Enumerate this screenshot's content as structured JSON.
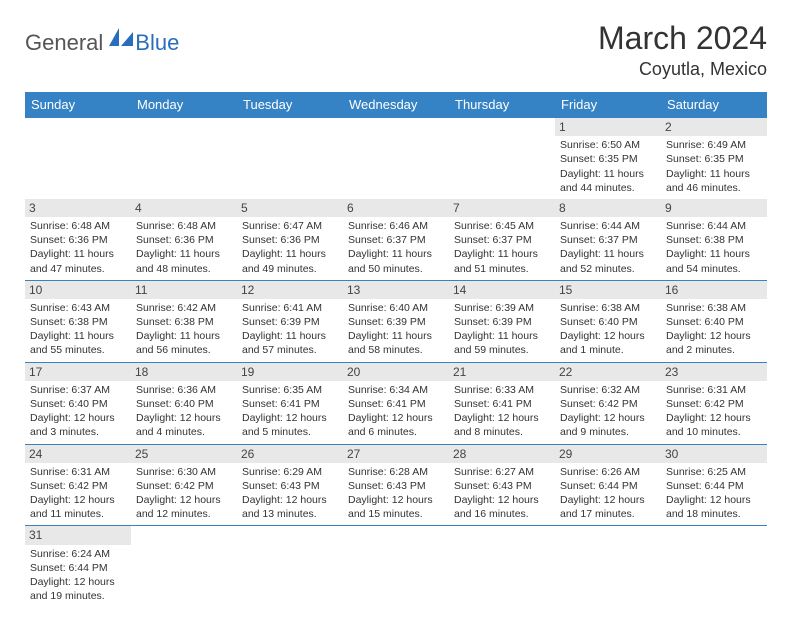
{
  "brand": {
    "text1": "General",
    "text2": "Blue"
  },
  "title": "March 2024",
  "location": "Coyutla, Mexico",
  "colors": {
    "header_bg": "#3582c4",
    "header_fg": "#ffffff",
    "daynum_bg": "#e8e8e8",
    "border": "#3582c4",
    "brand_blue": "#2a6ebb"
  },
  "day_names": [
    "Sunday",
    "Monday",
    "Tuesday",
    "Wednesday",
    "Thursday",
    "Friday",
    "Saturday"
  ],
  "weeks": [
    [
      {
        "n": "",
        "sr": "",
        "ss": "",
        "d1": "",
        "d2": ""
      },
      {
        "n": "",
        "sr": "",
        "ss": "",
        "d1": "",
        "d2": ""
      },
      {
        "n": "",
        "sr": "",
        "ss": "",
        "d1": "",
        "d2": ""
      },
      {
        "n": "",
        "sr": "",
        "ss": "",
        "d1": "",
        "d2": ""
      },
      {
        "n": "",
        "sr": "",
        "ss": "",
        "d1": "",
        "d2": ""
      },
      {
        "n": "1",
        "sr": "Sunrise: 6:50 AM",
        "ss": "Sunset: 6:35 PM",
        "d1": "Daylight: 11 hours",
        "d2": "and 44 minutes."
      },
      {
        "n": "2",
        "sr": "Sunrise: 6:49 AM",
        "ss": "Sunset: 6:35 PM",
        "d1": "Daylight: 11 hours",
        "d2": "and 46 minutes."
      }
    ],
    [
      {
        "n": "3",
        "sr": "Sunrise: 6:48 AM",
        "ss": "Sunset: 6:36 PM",
        "d1": "Daylight: 11 hours",
        "d2": "and 47 minutes."
      },
      {
        "n": "4",
        "sr": "Sunrise: 6:48 AM",
        "ss": "Sunset: 6:36 PM",
        "d1": "Daylight: 11 hours",
        "d2": "and 48 minutes."
      },
      {
        "n": "5",
        "sr": "Sunrise: 6:47 AM",
        "ss": "Sunset: 6:36 PM",
        "d1": "Daylight: 11 hours",
        "d2": "and 49 minutes."
      },
      {
        "n": "6",
        "sr": "Sunrise: 6:46 AM",
        "ss": "Sunset: 6:37 PM",
        "d1": "Daylight: 11 hours",
        "d2": "and 50 minutes."
      },
      {
        "n": "7",
        "sr": "Sunrise: 6:45 AM",
        "ss": "Sunset: 6:37 PM",
        "d1": "Daylight: 11 hours",
        "d2": "and 51 minutes."
      },
      {
        "n": "8",
        "sr": "Sunrise: 6:44 AM",
        "ss": "Sunset: 6:37 PM",
        "d1": "Daylight: 11 hours",
        "d2": "and 52 minutes."
      },
      {
        "n": "9",
        "sr": "Sunrise: 6:44 AM",
        "ss": "Sunset: 6:38 PM",
        "d1": "Daylight: 11 hours",
        "d2": "and 54 minutes."
      }
    ],
    [
      {
        "n": "10",
        "sr": "Sunrise: 6:43 AM",
        "ss": "Sunset: 6:38 PM",
        "d1": "Daylight: 11 hours",
        "d2": "and 55 minutes."
      },
      {
        "n": "11",
        "sr": "Sunrise: 6:42 AM",
        "ss": "Sunset: 6:38 PM",
        "d1": "Daylight: 11 hours",
        "d2": "and 56 minutes."
      },
      {
        "n": "12",
        "sr": "Sunrise: 6:41 AM",
        "ss": "Sunset: 6:39 PM",
        "d1": "Daylight: 11 hours",
        "d2": "and 57 minutes."
      },
      {
        "n": "13",
        "sr": "Sunrise: 6:40 AM",
        "ss": "Sunset: 6:39 PM",
        "d1": "Daylight: 11 hours",
        "d2": "and 58 minutes."
      },
      {
        "n": "14",
        "sr": "Sunrise: 6:39 AM",
        "ss": "Sunset: 6:39 PM",
        "d1": "Daylight: 11 hours",
        "d2": "and 59 minutes."
      },
      {
        "n": "15",
        "sr": "Sunrise: 6:38 AM",
        "ss": "Sunset: 6:40 PM",
        "d1": "Daylight: 12 hours",
        "d2": "and 1 minute."
      },
      {
        "n": "16",
        "sr": "Sunrise: 6:38 AM",
        "ss": "Sunset: 6:40 PM",
        "d1": "Daylight: 12 hours",
        "d2": "and 2 minutes."
      }
    ],
    [
      {
        "n": "17",
        "sr": "Sunrise: 6:37 AM",
        "ss": "Sunset: 6:40 PM",
        "d1": "Daylight: 12 hours",
        "d2": "and 3 minutes."
      },
      {
        "n": "18",
        "sr": "Sunrise: 6:36 AM",
        "ss": "Sunset: 6:40 PM",
        "d1": "Daylight: 12 hours",
        "d2": "and 4 minutes."
      },
      {
        "n": "19",
        "sr": "Sunrise: 6:35 AM",
        "ss": "Sunset: 6:41 PM",
        "d1": "Daylight: 12 hours",
        "d2": "and 5 minutes."
      },
      {
        "n": "20",
        "sr": "Sunrise: 6:34 AM",
        "ss": "Sunset: 6:41 PM",
        "d1": "Daylight: 12 hours",
        "d2": "and 6 minutes."
      },
      {
        "n": "21",
        "sr": "Sunrise: 6:33 AM",
        "ss": "Sunset: 6:41 PM",
        "d1": "Daylight: 12 hours",
        "d2": "and 8 minutes."
      },
      {
        "n": "22",
        "sr": "Sunrise: 6:32 AM",
        "ss": "Sunset: 6:42 PM",
        "d1": "Daylight: 12 hours",
        "d2": "and 9 minutes."
      },
      {
        "n": "23",
        "sr": "Sunrise: 6:31 AM",
        "ss": "Sunset: 6:42 PM",
        "d1": "Daylight: 12 hours",
        "d2": "and 10 minutes."
      }
    ],
    [
      {
        "n": "24",
        "sr": "Sunrise: 6:31 AM",
        "ss": "Sunset: 6:42 PM",
        "d1": "Daylight: 12 hours",
        "d2": "and 11 minutes."
      },
      {
        "n": "25",
        "sr": "Sunrise: 6:30 AM",
        "ss": "Sunset: 6:42 PM",
        "d1": "Daylight: 12 hours",
        "d2": "and 12 minutes."
      },
      {
        "n": "26",
        "sr": "Sunrise: 6:29 AM",
        "ss": "Sunset: 6:43 PM",
        "d1": "Daylight: 12 hours",
        "d2": "and 13 minutes."
      },
      {
        "n": "27",
        "sr": "Sunrise: 6:28 AM",
        "ss": "Sunset: 6:43 PM",
        "d1": "Daylight: 12 hours",
        "d2": "and 15 minutes."
      },
      {
        "n": "28",
        "sr": "Sunrise: 6:27 AM",
        "ss": "Sunset: 6:43 PM",
        "d1": "Daylight: 12 hours",
        "d2": "and 16 minutes."
      },
      {
        "n": "29",
        "sr": "Sunrise: 6:26 AM",
        "ss": "Sunset: 6:44 PM",
        "d1": "Daylight: 12 hours",
        "d2": "and 17 minutes."
      },
      {
        "n": "30",
        "sr": "Sunrise: 6:25 AM",
        "ss": "Sunset: 6:44 PM",
        "d1": "Daylight: 12 hours",
        "d2": "and 18 minutes."
      }
    ],
    [
      {
        "n": "31",
        "sr": "Sunrise: 6:24 AM",
        "ss": "Sunset: 6:44 PM",
        "d1": "Daylight: 12 hours",
        "d2": "and 19 minutes."
      },
      {
        "n": "",
        "sr": "",
        "ss": "",
        "d1": "",
        "d2": ""
      },
      {
        "n": "",
        "sr": "",
        "ss": "",
        "d1": "",
        "d2": ""
      },
      {
        "n": "",
        "sr": "",
        "ss": "",
        "d1": "",
        "d2": ""
      },
      {
        "n": "",
        "sr": "",
        "ss": "",
        "d1": "",
        "d2": ""
      },
      {
        "n": "",
        "sr": "",
        "ss": "",
        "d1": "",
        "d2": ""
      },
      {
        "n": "",
        "sr": "",
        "ss": "",
        "d1": "",
        "d2": ""
      }
    ]
  ]
}
